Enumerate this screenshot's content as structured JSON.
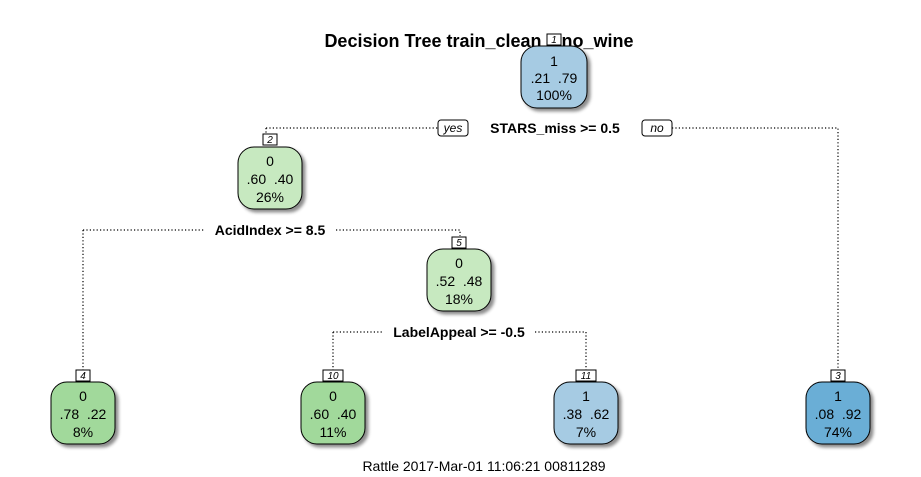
{
  "title": "Decision Tree train_clean $ no_wine",
  "caption": "Rattle 2017-Mar-01 11:06:21 00811289",
  "labels": {
    "yes": "yes",
    "no": "no"
  },
  "colors": {
    "green_light": "#c7e9c0",
    "green_mid": "#a1d99b",
    "blue_light": "#a6cbe3",
    "blue_dark": "#6aaed6"
  },
  "nodes": {
    "n1": {
      "id": "1",
      "class": "1",
      "probs": ".21  .79",
      "pct": "100%"
    },
    "n2": {
      "id": "2",
      "class": "0",
      "probs": ".60  .40",
      "pct": "26%"
    },
    "n3": {
      "id": "3",
      "class": "1",
      "probs": ".08  .92",
      "pct": "74%"
    },
    "n4": {
      "id": "4",
      "class": "0",
      "probs": ".78  .22",
      "pct": "8%"
    },
    "n5": {
      "id": "5",
      "class": "0",
      "probs": ".52  .48",
      "pct": "18%"
    },
    "n10": {
      "id": "10",
      "class": "0",
      "probs": ".60  .40",
      "pct": "11%"
    },
    "n11": {
      "id": "11",
      "class": "1",
      "probs": ".38  .62",
      "pct": "7%"
    }
  },
  "splits": {
    "s1": "STARS_miss >= 0.5",
    "s2": "AcidIndex >= 8.5",
    "s5": "LabelAppeal >= -0.5"
  }
}
